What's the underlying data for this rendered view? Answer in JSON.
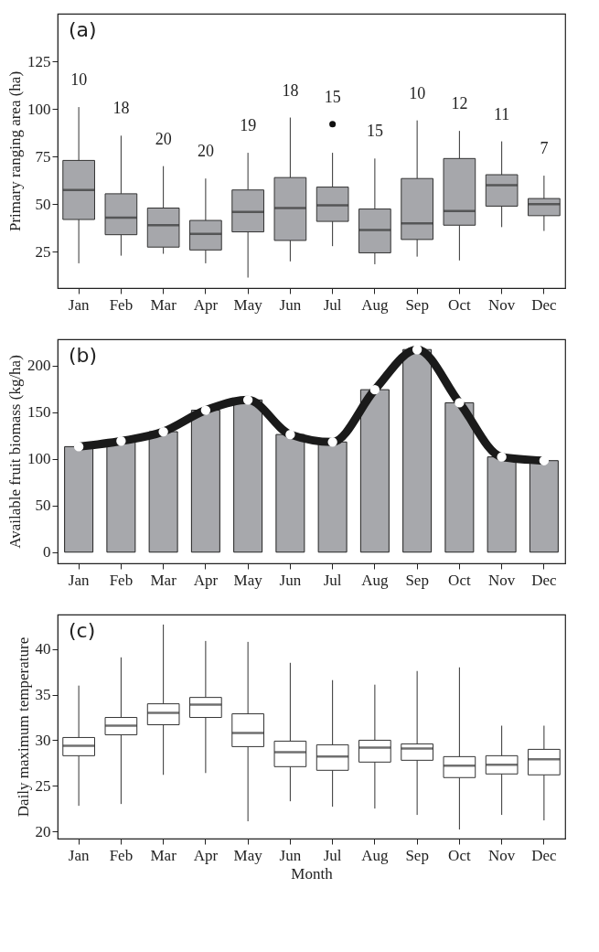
{
  "chart_data": [
    {
      "type": "box",
      "title": "(a)",
      "ylabel": "Primary ranging area (ha)",
      "categories": [
        "Jan",
        "Feb",
        "Mar",
        "Apr",
        "May",
        "Jun",
        "Jul",
        "Aug",
        "Sep",
        "Oct",
        "Nov",
        "Dec"
      ],
      "ylim": [
        6,
        150
      ],
      "yticks": [
        25,
        50,
        75,
        100,
        125
      ],
      "grid": false,
      "series": [
        {
          "color": "#a6a7ab",
          "boxes": [
            {
              "low": 19,
              "q1": 42,
              "median": 57.5,
              "q3": 73,
              "high": 101
            },
            {
              "low": 23,
              "q1": 34,
              "median": 43,
              "q3": 55.5,
              "high": 86
            },
            {
              "low": 24,
              "q1": 27.5,
              "median": 39,
              "q3": 48,
              "high": 70
            },
            {
              "low": 19,
              "q1": 26,
              "median": 34.5,
              "q3": 41.5,
              "high": 63.5
            },
            {
              "low": 11.5,
              "q1": 35.5,
              "median": 46,
              "q3": 57.5,
              "high": 77
            },
            {
              "low": 20,
              "q1": 31,
              "median": 48,
              "q3": 64,
              "high": 95.5
            },
            {
              "low": 28,
              "q1": 41,
              "median": 49.5,
              "q3": 59,
              "high": 77,
              "outliers": [
                92
              ]
            },
            {
              "low": 18.5,
              "q1": 24.5,
              "median": 36.5,
              "q3": 47.5,
              "high": 74
            },
            {
              "low": 22.5,
              "q1": 31.5,
              "median": 40,
              "q3": 63.5,
              "high": 94
            },
            {
              "low": 20.5,
              "q1": 39,
              "median": 46.5,
              "q3": 74,
              "high": 88.5
            },
            {
              "low": 38,
              "q1": 49,
              "median": 60,
              "q3": 65.5,
              "high": 83
            },
            {
              "low": 36,
              "q1": 44,
              "median": 50,
              "q3": 53,
              "high": 65
            }
          ]
        }
      ],
      "annotations": [
        "10",
        "18",
        "20",
        "20",
        "19",
        "18",
        "15",
        "15",
        "10",
        "12",
        "11",
        "7"
      ]
    },
    {
      "type": "bar",
      "title": "(b)",
      "ylabel": "Available fruit biomass (kg/ha)",
      "categories": [
        "Jan",
        "Feb",
        "Mar",
        "Apr",
        "May",
        "Jun",
        "Jul",
        "Aug",
        "Sep",
        "Oct",
        "Nov",
        "Dec"
      ],
      "ylim": [
        -12,
        228
      ],
      "yticks": [
        0,
        50,
        100,
        150,
        200
      ],
      "grid": false,
      "marker": "circle",
      "series": [
        {
          "type": "bar",
          "color": "#a7a8ac",
          "values": [
            113,
            119,
            129,
            152,
            163,
            126,
            118,
            174,
            217,
            160,
            102,
            98
          ]
        },
        {
          "type": "line",
          "color": "#1a1a1a",
          "values": [
            113,
            119,
            129,
            152,
            163,
            126,
            118,
            174,
            217,
            160,
            102,
            98
          ]
        }
      ]
    },
    {
      "type": "box",
      "title": "(c)",
      "ylabel": "Daily maximum temperature",
      "xlabel": "Month",
      "categories": [
        "Jan",
        "Feb",
        "Mar",
        "Apr",
        "May",
        "Jun",
        "Jul",
        "Aug",
        "Sep",
        "Oct",
        "Nov",
        "Dec"
      ],
      "ylim": [
        19.2,
        43.8
      ],
      "yticks": [
        20,
        25,
        30,
        35,
        40
      ],
      "grid": false,
      "series": [
        {
          "color": "#ffffff",
          "boxes": [
            {
              "low": 22.8,
              "q1": 28.3,
              "median": 29.4,
              "q3": 30.3,
              "high": 36
            },
            {
              "low": 23,
              "q1": 30.6,
              "median": 31.6,
              "q3": 32.5,
              "high": 39.1
            },
            {
              "low": 26.2,
              "q1": 31.7,
              "median": 33,
              "q3": 34,
              "high": 42.7
            },
            {
              "low": 26.4,
              "q1": 32.5,
              "median": 33.9,
              "q3": 34.7,
              "high": 40.9
            },
            {
              "low": 21.1,
              "q1": 29.3,
              "median": 30.8,
              "q3": 32.9,
              "high": 40.8
            },
            {
              "low": 23.3,
              "q1": 27.1,
              "median": 28.7,
              "q3": 29.9,
              "high": 38.5
            },
            {
              "low": 22.7,
              "q1": 26.7,
              "median": 28.2,
              "q3": 29.5,
              "high": 36.6
            },
            {
              "low": 22.5,
              "q1": 27.6,
              "median": 29.2,
              "q3": 30,
              "high": 36.1
            },
            {
              "low": 21.8,
              "q1": 27.8,
              "median": 29.1,
              "q3": 29.6,
              "high": 37.6
            },
            {
              "low": 20.2,
              "q1": 25.9,
              "median": 27.2,
              "q3": 28.2,
              "high": 38
            },
            {
              "low": 21.8,
              "q1": 26.3,
              "median": 27.3,
              "q3": 28.3,
              "high": 31.6
            },
            {
              "low": 21.2,
              "q1": 26.2,
              "median": 27.9,
              "q3": 29,
              "high": 31.6
            }
          ]
        }
      ]
    }
  ]
}
